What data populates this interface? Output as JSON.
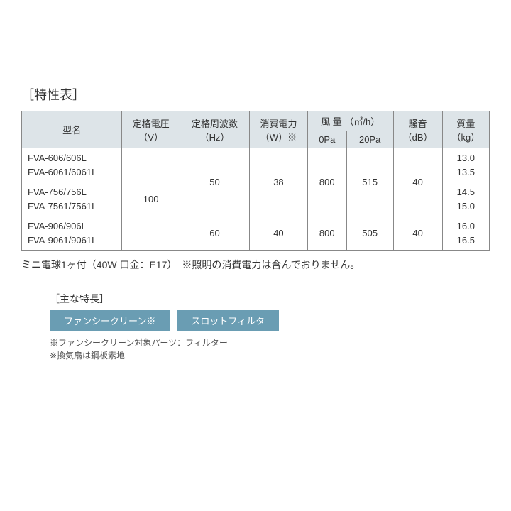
{
  "title": "［特性表］",
  "table": {
    "headers": {
      "model": "型名",
      "voltage": "定格電圧",
      "voltage_unit": "（V）",
      "freq": "定格周波数",
      "freq_unit": "（Hz）",
      "power": "消費電力",
      "power_unit": "（W）※",
      "airflow": "風 量 （㎥/h）",
      "airflow_0": "0Pa",
      "airflow_20": "20Pa",
      "noise": "騒音",
      "noise_unit": "（dB）",
      "mass": "質量",
      "mass_unit": "（kg）"
    },
    "rows": [
      {
        "model_l1": "FVA-606/606L",
        "model_l2": "FVA-6061/6061L",
        "mass_l1": "13.0",
        "mass_l2": "13.5"
      },
      {
        "model_l1": "FVA-756/756L",
        "model_l2": "FVA-7561/7561L",
        "mass_l1": "14.5",
        "mass_l2": "15.0"
      },
      {
        "model_l1": "FVA-906/906L",
        "model_l2": "FVA-9061/9061L",
        "mass_l1": "16.0",
        "mass_l2": "16.5"
      }
    ],
    "voltage": "100",
    "group1": {
      "freq": "50",
      "power": "38",
      "air0": "800",
      "air20": "515",
      "noise": "40"
    },
    "group2": {
      "freq": "60",
      "power": "40",
      "air0": "800",
      "air20": "505",
      "noise": "40"
    }
  },
  "footnote": "ミニ電球1ヶ付（40W 口金：E17）　※照明の消費電力は含んでおりません。",
  "features": {
    "title": "［主な特長］",
    "badge1": "ファンシークリーン※",
    "badge2": "スロットフィルタ",
    "note1": "※ファンシークリーン対象パーツ：フィルター",
    "note2": "※換気扇は鋼板素地"
  },
  "colors": {
    "header_bg": "#dde4e8",
    "border": "#888888",
    "badge_bg": "#6a9db3",
    "text": "#333333"
  }
}
